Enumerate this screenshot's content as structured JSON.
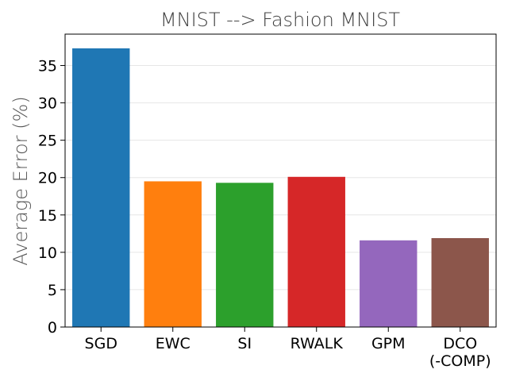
{
  "chart_data": {
    "type": "bar",
    "title": "MNIST --> Fashion MNIST",
    "xlabel": "",
    "ylabel": "Average Error (%)",
    "categories": [
      [
        "SGD"
      ],
      [
        "EWC"
      ],
      [
        "SI"
      ],
      [
        "RWALK"
      ],
      [
        "GPM"
      ],
      [
        "DCO",
        "(-COMP)"
      ]
    ],
    "values": [
      37.3,
      19.5,
      19.3,
      20.1,
      11.6,
      11.9
    ],
    "colors": [
      "#1f77b4",
      "#ff7f0e",
      "#2ca02c",
      "#d62728",
      "#9467bd",
      "#8c564b"
    ],
    "ylim": [
      0,
      39.2
    ],
    "yticks": [
      0,
      5,
      10,
      15,
      20,
      25,
      30,
      35
    ],
    "grid": true
  }
}
